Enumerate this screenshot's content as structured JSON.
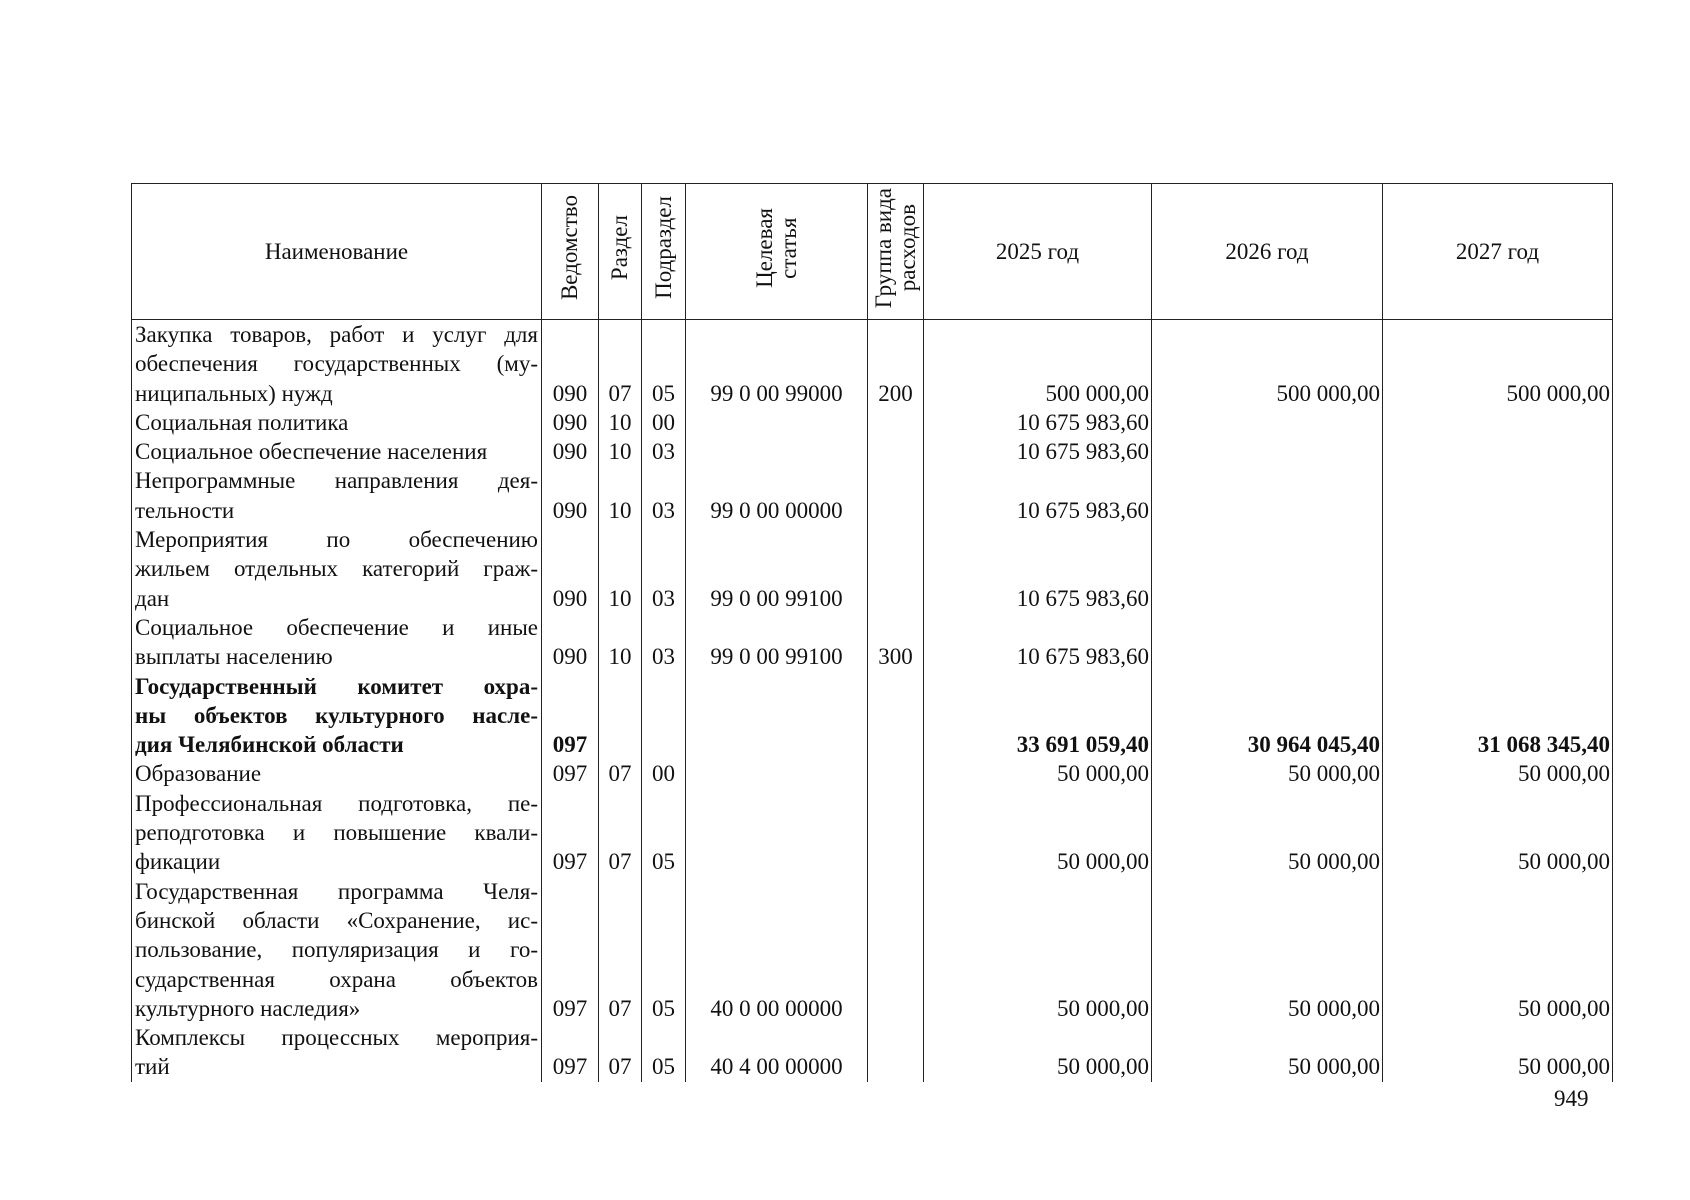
{
  "header": {
    "name": "Наименование",
    "vedomstvo": "Ведомство",
    "razdel": "Раздел",
    "podrazdel": "Подраздел",
    "celevaya": [
      "Целевая",
      "статья"
    ],
    "gruppa": [
      "Группа вида",
      "расходов"
    ],
    "y2025": "2025 год",
    "y2026": "2026 год",
    "y2027": "2027 год"
  },
  "rows": [
    {
      "name": [
        "Закупка товаров, работ и услуг для",
        "обеспечения государственных (му-",
        "ниципальных) нужд"
      ],
      "ved": "090",
      "raz": "07",
      "pod": "05",
      "cs": "99 0 00 99000",
      "vr": "200",
      "v2025": "500 000,00",
      "v2026": "500 000,00",
      "v2027": "500 000,00",
      "bold": false
    },
    {
      "name": [
        "Социальная политика"
      ],
      "ved": "090",
      "raz": "10",
      "pod": "00",
      "cs": "",
      "vr": "",
      "v2025": "10 675 983,60",
      "v2026": "",
      "v2027": "",
      "bold": false
    },
    {
      "name": [
        "Социальное обеспечение населения"
      ],
      "ved": "090",
      "raz": "10",
      "pod": "03",
      "cs": "",
      "vr": "",
      "v2025": "10 675 983,60",
      "v2026": "",
      "v2027": "",
      "bold": false
    },
    {
      "name": [
        "Непрограммные направления дея-",
        "тельности"
      ],
      "ved": "090",
      "raz": "10",
      "pod": "03",
      "cs": "99 0 00 00000",
      "vr": "",
      "v2025": "10 675 983,60",
      "v2026": "",
      "v2027": "",
      "bold": false
    },
    {
      "name": [
        "Мероприятия по обеспечению",
        "жильем отдельных категорий граж-",
        "дан"
      ],
      "ved": "090",
      "raz": "10",
      "pod": "03",
      "cs": "99 0 00 99100",
      "vr": "",
      "v2025": "10 675 983,60",
      "v2026": "",
      "v2027": "",
      "bold": false
    },
    {
      "name": [
        "Социальное обеспечение и иные",
        "выплаты населению"
      ],
      "ved": "090",
      "raz": "10",
      "pod": "03",
      "cs": "99 0 00 99100",
      "vr": "300",
      "v2025": "10 675 983,60",
      "v2026": "",
      "v2027": "",
      "bold": false
    },
    {
      "name": [
        "Государственный комитет охра-",
        "ны объектов культурного насле-",
        "дия Челябинской области"
      ],
      "ved": "097",
      "raz": "",
      "pod": "",
      "cs": "",
      "vr": "",
      "v2025": "33 691 059,40",
      "v2026": "30 964 045,40",
      "v2027": "31 068 345,40",
      "bold": true
    },
    {
      "name": [
        "Образование"
      ],
      "ved": "097",
      "raz": "07",
      "pod": "00",
      "cs": "",
      "vr": "",
      "v2025": "50 000,00",
      "v2026": "50 000,00",
      "v2027": "50 000,00",
      "bold": false
    },
    {
      "name": [
        "Профессиональная подготовка, пе-",
        "реподготовка и повышение квали-",
        "фикации"
      ],
      "ved": "097",
      "raz": "07",
      "pod": "05",
      "cs": "",
      "vr": "",
      "v2025": "50 000,00",
      "v2026": "50 000,00",
      "v2027": "50 000,00",
      "bold": false
    },
    {
      "name": [
        "Государственная программа Челя-",
        "бинской области «Сохранение, ис-",
        "пользование, популяризация и го-",
        "сударственная охрана объектов",
        "культурного наследия»"
      ],
      "ved": "097",
      "raz": "07",
      "pod": "05",
      "cs": "40 0 00 00000",
      "vr": "",
      "v2025": "50 000,00",
      "v2026": "50 000,00",
      "v2027": "50 000,00",
      "bold": false
    },
    {
      "name": [
        "Комплексы процессных мероприя-",
        "тий"
      ],
      "ved": "097",
      "raz": "07",
      "pod": "05",
      "cs": "40 4 00 00000",
      "vr": "",
      "v2025": "50 000,00",
      "v2026": "50 000,00",
      "v2027": "50 000,00",
      "bold": false
    }
  ],
  "page_number": "949"
}
